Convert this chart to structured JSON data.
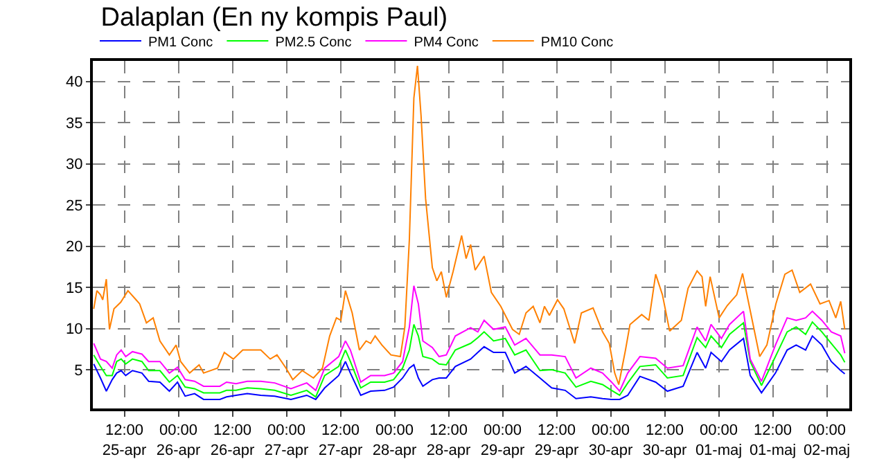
{
  "chart_data": {
    "type": "line",
    "title": "Dalaplan (En ny kompis Paul)",
    "xlim": [
      "--04-25T05:00",
      "--05-02T05:00"
    ],
    "xticks": [
      {
        "value": "--04-25T12:00",
        "label": "12:00\n25-apr"
      },
      {
        "value": "--04-26T00:00",
        "label": "00:00\n26-apr"
      },
      {
        "value": "--04-26T12:00",
        "label": "12:00\n26-apr"
      },
      {
        "value": "--04-27T00:00",
        "label": "00:00\n27-apr"
      },
      {
        "value": "--04-27T12:00",
        "label": "12:00\n27-apr"
      },
      {
        "value": "--04-28T00:00",
        "label": "00:00\n28-apr"
      },
      {
        "value": "--04-28T12:00",
        "label": "12:00\n28-apr"
      },
      {
        "value": "--04-29T00:00",
        "label": "00:00\n29-apr"
      },
      {
        "value": "--04-29T12:00",
        "label": "12:00\n29-apr"
      },
      {
        "value": "--04-30T00:00",
        "label": "00:00\n30-apr"
      },
      {
        "value": "--04-30T12:00",
        "label": "12:00\n30-apr"
      },
      {
        "value": "--05-01T00:00",
        "label": "00:00\n01-maj"
      },
      {
        "value": "--05-01T12:00",
        "label": "12:00\n01-maj"
      },
      {
        "value": "--05-02T00:00",
        "label": "00:00\n02-maj"
      }
    ],
    "ylim": [
      0.3,
      42.5
    ],
    "yticks": [
      5,
      10,
      15,
      20,
      25,
      30,
      35,
      40
    ],
    "grid": true,
    "legend": "top left",
    "marker": "none",
    "line_style": "solid",
    "series": [
      {
        "name": "PM1 Conc",
        "color": "#0000ff",
        "x": [
          "--04-25T05:12",
          "--04-25T06:42",
          "--04-25T08:00",
          "--04-25T09:18",
          "--04-25T10:18",
          "--04-25T11:18",
          "--04-25T12:18",
          "--04-25T13:48",
          "--04-25T15:54",
          "--04-25T17:24",
          "--04-25T19:54",
          "--04-25T22:00",
          "--04-25T23:48",
          "--04-26T01:30",
          "--04-26T03:36",
          "--04-26T05:36",
          "--04-26T09:12",
          "--04-26T10:42",
          "--04-26T12:48",
          "--04-26T15:18",
          "--04-26T18:18",
          "--04-26T21:24",
          "--04-27T01:00",
          "--04-27T04:30",
          "--04-27T06:30",
          "--04-27T08:30",
          "--04-27T11:36",
          "--04-27T13:06",
          "--04-27T14:12",
          "--04-27T16:30",
          "--04-27T18:42",
          "--04-27T21:48",
          "--04-27T23:48",
          "--04-28T01:48",
          "--04-28T03:18",
          "--04-28T04:18",
          "--04-28T05:18",
          "--04-28T06:18",
          "--04-28T08:24",
          "--04-28T09:54",
          "--04-28T11:30",
          "--04-28T13:30",
          "--04-28T16:54",
          "--04-28T18:30",
          "--04-28T19:54",
          "--04-28T22:00",
          "--04-29T00:36",
          "--04-29T02:42",
          "--04-29T05:12",
          "--04-29T08:18",
          "--04-29T10:54",
          "--04-29T13:54",
          "--04-29T16:18",
          "--04-29T19:36",
          "--04-29T22:12",
          "--04-30T00:12",
          "--04-30T02:00",
          "--04-30T03:48",
          "--04-30T06:30",
          "--04-30T10:00",
          "--04-30T12:36",
          "--04-30T16:06",
          "--04-30T19:12",
          "--04-30T21:06",
          "--04-30T22:18",
          "--05-01T00:36",
          "--05-01T02:24",
          "--05-01T05:30",
          "--05-01T07:00",
          "--05-01T09:30",
          "--05-01T12:36",
          "--05-01T15:12",
          "--05-01T17:12",
          "--05-01T19:18",
          "--05-01T20:48",
          "--05-01T22:54",
          "--05-02T01:00",
          "--05-02T03:06",
          "--05-02T04:00"
        ],
        "values": [
          5.7,
          4.0,
          2.4,
          3.8,
          4.6,
          4.9,
          4.3,
          4.9,
          4.6,
          3.6,
          3.5,
          2.4,
          3.5,
          1.8,
          2.1,
          1.4,
          1.4,
          1.7,
          1.9,
          2.1,
          1.9,
          1.8,
          1.4,
          1.9,
          1.4,
          2.8,
          4.3,
          6.0,
          4.6,
          1.9,
          2.4,
          2.5,
          2.9,
          4.0,
          5.2,
          5.6,
          4.0,
          3.0,
          3.8,
          4.0,
          4.0,
          5.4,
          6.3,
          7.1,
          7.8,
          7.1,
          7.1,
          4.6,
          5.4,
          4.0,
          2.8,
          2.5,
          1.5,
          1.7,
          1.5,
          1.4,
          1.4,
          1.9,
          4.2,
          3.5,
          2.4,
          3.0,
          7.1,
          5.2,
          7.1,
          6.0,
          7.4,
          8.8,
          4.3,
          2.2,
          4.6,
          7.4,
          8.0,
          7.4,
          9.1,
          8.0,
          6.0,
          4.9,
          4.5
        ]
      },
      {
        "name": "PM2.5 Conc",
        "color": "#00ff00",
        "x": [
          "--04-25T05:12",
          "--04-25T06:42",
          "--04-25T08:00",
          "--04-25T09:18",
          "--04-25T10:18",
          "--04-25T11:18",
          "--04-25T12:18",
          "--04-25T13:48",
          "--04-25T15:54",
          "--04-25T17:24",
          "--04-25T19:54",
          "--04-25T22:00",
          "--04-25T23:48",
          "--04-26T01:30",
          "--04-26T03:36",
          "--04-26T05:36",
          "--04-26T09:12",
          "--04-26T10:42",
          "--04-26T12:48",
          "--04-26T15:18",
          "--04-26T18:18",
          "--04-26T21:24",
          "--04-27T01:00",
          "--04-27T04:30",
          "--04-27T06:30",
          "--04-27T08:30",
          "--04-27T11:36",
          "--04-27T13:06",
          "--04-27T14:12",
          "--04-27T16:30",
          "--04-27T18:42",
          "--04-27T21:48",
          "--04-27T23:48",
          "--04-28T01:48",
          "--04-28T03:18",
          "--04-28T04:18",
          "--04-28T05:18",
          "--04-28T06:18",
          "--04-28T08:24",
          "--04-28T09:54",
          "--04-28T11:30",
          "--04-28T13:30",
          "--04-28T16:54",
          "--04-28T18:30",
          "--04-28T19:54",
          "--04-28T22:00",
          "--04-29T00:36",
          "--04-29T02:42",
          "--04-29T05:12",
          "--04-29T08:18",
          "--04-29T10:54",
          "--04-29T13:54",
          "--04-29T16:18",
          "--04-29T19:36",
          "--04-29T22:12",
          "--04-30T00:12",
          "--04-30T02:00",
          "--04-30T03:48",
          "--04-30T06:30",
          "--04-30T10:00",
          "--04-30T12:36",
          "--04-30T16:06",
          "--04-30T19:12",
          "--04-30T21:06",
          "--04-30T22:18",
          "--05-01T00:36",
          "--05-01T02:24",
          "--05-01T05:30",
          "--05-01T07:00",
          "--05-01T09:30",
          "--05-01T12:36",
          "--05-01T15:12",
          "--05-01T17:12",
          "--05-01T19:18",
          "--05-01T20:48",
          "--05-01T22:54",
          "--05-02T01:00",
          "--05-02T03:06",
          "--05-02T04:00"
        ],
        "values": [
          6.8,
          5.4,
          4.3,
          4.3,
          6.0,
          6.3,
          5.7,
          6.3,
          6.0,
          4.9,
          4.9,
          3.5,
          4.3,
          2.9,
          2.7,
          2.2,
          2.2,
          2.5,
          2.5,
          2.8,
          2.7,
          2.5,
          1.9,
          2.5,
          1.7,
          4.3,
          5.4,
          7.4,
          6.0,
          2.8,
          3.5,
          3.5,
          3.8,
          5.2,
          7.4,
          10.5,
          9.1,
          6.6,
          6.3,
          5.7,
          5.6,
          7.4,
          8.2,
          8.9,
          9.6,
          8.5,
          8.8,
          6.8,
          7.4,
          4.9,
          5.0,
          4.6,
          2.9,
          3.6,
          3.2,
          2.5,
          1.9,
          3.4,
          5.4,
          5.6,
          4.0,
          4.3,
          8.9,
          7.7,
          9.1,
          7.7,
          9.3,
          10.7,
          6.0,
          3.1,
          6.6,
          9.6,
          10.2,
          9.3,
          10.8,
          9.6,
          8.2,
          6.8,
          5.9
        ]
      },
      {
        "name": "PM4 Conc",
        "color": "#ff00ff",
        "x": [
          "--04-25T05:12",
          "--04-25T06:42",
          "--04-25T08:00",
          "--04-25T09:18",
          "--04-25T10:18",
          "--04-25T11:18",
          "--04-25T12:18",
          "--04-25T13:48",
          "--04-25T15:54",
          "--04-25T17:24",
          "--04-25T19:54",
          "--04-25T22:00",
          "--04-25T23:48",
          "--04-26T01:30",
          "--04-26T03:36",
          "--04-26T05:36",
          "--04-26T09:12",
          "--04-26T10:42",
          "--04-26T12:48",
          "--04-26T15:18",
          "--04-26T18:18",
          "--04-26T21:24",
          "--04-27T01:00",
          "--04-27T04:30",
          "--04-27T06:30",
          "--04-27T08:30",
          "--04-27T11:36",
          "--04-27T13:06",
          "--04-27T14:12",
          "--04-27T16:30",
          "--04-27T18:42",
          "--04-27T21:48",
          "--04-27T23:48",
          "--04-28T01:48",
          "--04-28T03:18",
          "--04-28T04:18",
          "--04-28T05:18",
          "--04-28T06:18",
          "--04-28T08:24",
          "--04-28T09:54",
          "--04-28T11:30",
          "--04-28T13:30",
          "--04-28T16:54",
          "--04-28T18:30",
          "--04-28T19:54",
          "--04-28T22:00",
          "--04-29T00:36",
          "--04-29T02:42",
          "--04-29T05:12",
          "--04-29T08:18",
          "--04-29T10:54",
          "--04-29T13:54",
          "--04-29T16:18",
          "--04-29T19:36",
          "--04-29T22:12",
          "--04-30T00:12",
          "--04-30T02:00",
          "--04-30T03:48",
          "--04-30T06:30",
          "--04-30T10:00",
          "--04-30T12:36",
          "--04-30T16:06",
          "--04-30T19:12",
          "--04-30T21:06",
          "--04-30T22:18",
          "--05-01T00:36",
          "--05-01T02:24",
          "--05-01T05:30",
          "--05-01T07:00",
          "--05-01T09:30",
          "--05-01T12:36",
          "--05-01T15:12",
          "--05-01T17:12",
          "--05-01T19:18",
          "--05-01T20:48",
          "--05-01T22:54",
          "--05-02T01:00",
          "--05-02T03:06",
          "--05-02T04:00"
        ],
        "values": [
          8.2,
          6.3,
          6.0,
          5.2,
          6.8,
          7.4,
          6.6,
          7.2,
          6.9,
          6.0,
          6.0,
          4.6,
          5.3,
          3.8,
          3.6,
          3.0,
          3.0,
          3.5,
          3.3,
          3.6,
          3.6,
          3.4,
          2.7,
          3.4,
          2.5,
          5.2,
          6.6,
          8.5,
          7.4,
          3.5,
          4.3,
          4.3,
          4.6,
          6.0,
          10.2,
          15.2,
          13.0,
          8.5,
          7.7,
          6.6,
          6.8,
          9.1,
          10.1,
          9.6,
          11.0,
          9.9,
          10.2,
          8.0,
          8.8,
          6.8,
          6.8,
          6.6,
          4.0,
          5.2,
          4.6,
          3.5,
          2.4,
          4.6,
          6.6,
          6.4,
          5.2,
          5.5,
          10.2,
          8.5,
          10.5,
          8.8,
          10.5,
          12.1,
          6.3,
          3.6,
          8.0,
          11.3,
          11.0,
          11.3,
          12.1,
          11.0,
          9.6,
          9.1,
          7.0
        ]
      },
      {
        "name": "PM10 Conc",
        "color": "#ff8000",
        "x": [
          "--04-25T05:12",
          "--04-25T05:54",
          "--04-25T06:42",
          "--04-25T07:12",
          "--04-25T08:00",
          "--04-25T08:42",
          "--04-25T09:42",
          "--04-25T11:12",
          "--04-25T12:48",
          "--04-25T14:36",
          "--04-25T15:24",
          "--04-25T16:54",
          "--04-25T18:24",
          "--04-25T19:54",
          "--04-25T22:00",
          "--04-25T23:30",
          "--04-26T00:30",
          "--04-26T02:30",
          "--04-26T04:36",
          "--04-26T05:36",
          "--04-26T08:42",
          "--04-26T10:12",
          "--04-26T12:12",
          "--04-26T14:18",
          "--04-26T18:18",
          "--04-26T20:24",
          "--04-26T21:54",
          "--04-26T23:54",
          "--04-27T01:24",
          "--04-27T03:30",
          "--04-27T06:00",
          "--04-27T08:00",
          "--04-27T09:36",
          "--04-27T11:06",
          "--04-27T12:06",
          "--04-27T13:06",
          "--04-27T14:36",
          "--04-27T16:12",
          "--04-27T17:42",
          "--04-27T18:42",
          "--04-27T19:42",
          "--04-27T21:12",
          "--04-27T23:12",
          "--04-28T01:18",
          "--04-28T02:18",
          "--04-28T03:18",
          "--04-28T04:18",
          "--04-28T05:06",
          "--04-28T05:54",
          "--04-28T06:54",
          "--04-28T08:24",
          "--04-28T09:24",
          "--04-28T10:24",
          "--04-28T11:30",
          "--04-28T13:00",
          "--04-28T14:54",
          "--04-28T15:54",
          "--04-28T16:54",
          "--04-28T17:54",
          "--04-28T19:54",
          "--04-28T21:30",
          "--04-28T23:36",
          "--04-29T02:12",
          "--04-29T03:42",
          "--04-29T05:12",
          "--04-29T06:48",
          "--04-29T08:18",
          "--04-29T09:18",
          "--04-29T10:24",
          "--04-29T12:12",
          "--04-29T13:36",
          "--04-29T16:00",
          "--04-29T17:30",
          "--04-29T20:06",
          "--04-29T22:12",
          "--04-29T23:42",
          "--04-30T00:54",
          "--04-30T01:48",
          "--04-30T03:18",
          "--04-30T04:18",
          "--04-30T06:54",
          "--04-30T08:30",
          "--04-30T10:00",
          "--04-30T11:30",
          "--04-30T13:06",
          "--04-30T15:42",
          "--04-30T17:12",
          "--04-30T19:12",
          "--04-30T20:18",
          "--04-30T21:06",
          "--04-30T22:06",
          "--05-01T00:06",
          "--05-01T01:54",
          "--05-01T04:00",
          "--05-01T05:18",
          "--05-01T06:30",
          "--05-01T09:06",
          "--05-01T10:42",
          "--05-01T12:42",
          "--05-01T14:42",
          "--05-01T16:18",
          "--05-01T18:00",
          "--05-01T20:24",
          "--05-01T22:30",
          "--05-02T00:30",
          "--05-02T02:00",
          "--05-02T03:06",
          "--05-02T04:00"
        ],
        "values": [
          12.4,
          14.6,
          14.1,
          13.5,
          16.0,
          9.9,
          12.4,
          13.2,
          14.6,
          13.5,
          13.0,
          10.7,
          11.3,
          8.5,
          6.8,
          8.0,
          6.0,
          4.6,
          5.6,
          4.6,
          5.2,
          7.1,
          6.3,
          7.4,
          7.4,
          6.3,
          6.8,
          5.2,
          3.8,
          4.9,
          4.0,
          5.2,
          9.1,
          11.3,
          11.0,
          14.6,
          11.9,
          7.4,
          8.5,
          8.2,
          9.1,
          8.0,
          6.8,
          6.6,
          10.2,
          20.8,
          38.0,
          41.9,
          35.8,
          25.8,
          17.4,
          15.8,
          16.9,
          13.8,
          16.9,
          21.3,
          18.5,
          20.2,
          17.1,
          18.8,
          14.4,
          12.7,
          9.9,
          9.3,
          11.9,
          12.7,
          10.7,
          12.7,
          11.6,
          13.5,
          12.4,
          8.2,
          11.9,
          12.5,
          9.6,
          8.2,
          4.6,
          3.2,
          7.4,
          10.5,
          11.7,
          11.0,
          16.6,
          14.1,
          9.7,
          11.0,
          14.9,
          17.0,
          16.3,
          12.7,
          16.3,
          11.3,
          12.8,
          14.1,
          16.7,
          13.5,
          6.6,
          8.0,
          13.0,
          16.6,
          17.1,
          14.4,
          15.4,
          13.0,
          13.4,
          11.3,
          13.3,
          9.9
        ]
      }
    ]
  }
}
